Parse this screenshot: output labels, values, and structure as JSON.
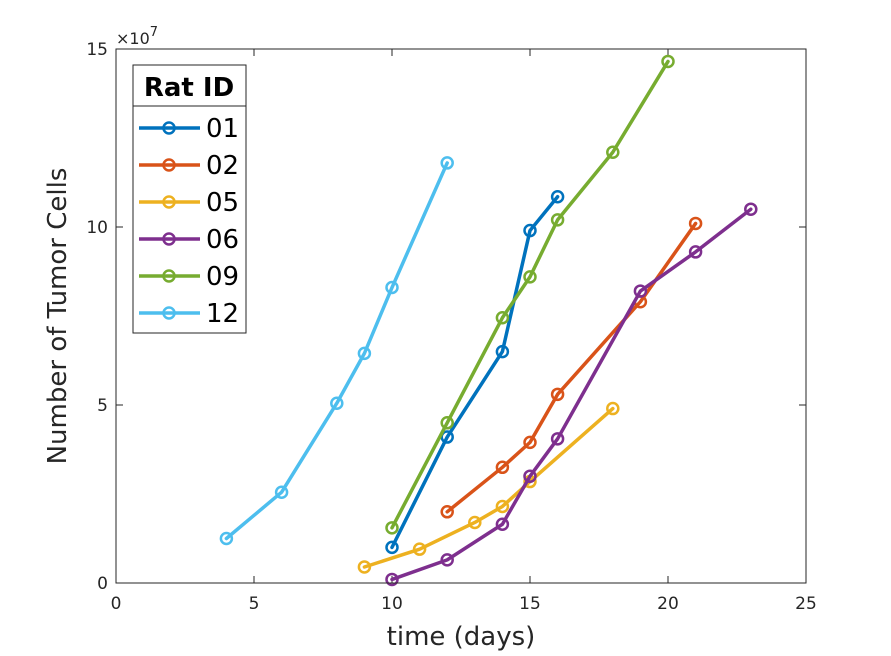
{
  "chart_data": {
    "type": "line",
    "xlabel": "time (days)",
    "ylabel": "Number of Tumor Cells",
    "xlim": [
      0,
      25
    ],
    "ylim": [
      0,
      150000000
    ],
    "xticks": [
      0,
      5,
      10,
      15,
      20,
      25
    ],
    "yticks": [
      0,
      50000000,
      100000000,
      150000000
    ],
    "ytick_labels": [
      "0",
      "5",
      "10",
      "15"
    ],
    "y_multiplier": "×10",
    "y_multiplier_exp": "7",
    "grid": false,
    "legend": {
      "title": "Rat ID",
      "placement": "top-left"
    },
    "series": [
      {
        "name": "01",
        "color": "#0072BD",
        "x": [
          10,
          12,
          14,
          15,
          16
        ],
        "y": [
          10000000,
          41000000,
          65000000,
          99000000,
          108500000
        ]
      },
      {
        "name": "02",
        "color": "#D95319",
        "x": [
          12,
          14,
          15,
          16,
          19,
          21
        ],
        "y": [
          20000000,
          32500000,
          39500000,
          53000000,
          79000000,
          101000000
        ]
      },
      {
        "name": "05",
        "color": "#EDB120",
        "x": [
          9,
          11,
          13,
          14,
          15,
          18
        ],
        "y": [
          4500000,
          9500000,
          17000000,
          21500000,
          28500000,
          49000000
        ]
      },
      {
        "name": "06",
        "color": "#7E2F8E",
        "x": [
          10,
          12,
          14,
          15,
          16,
          19,
          21,
          23
        ],
        "y": [
          1000000,
          6500000,
          16500000,
          30000000,
          40500000,
          82000000,
          93000000,
          105000000
        ]
      },
      {
        "name": "09",
        "color": "#77AC30",
        "x": [
          10,
          12,
          14,
          15,
          16,
          18,
          20
        ],
        "y": [
          15500000,
          45000000,
          74500000,
          86000000,
          102000000,
          121000000,
          146500000
        ]
      },
      {
        "name": "12",
        "color": "#4DBEEE",
        "x": [
          4,
          6,
          8,
          9,
          10,
          12
        ],
        "y": [
          12500000,
          25500000,
          50500000,
          64500000,
          83000000,
          118000000
        ]
      }
    ]
  }
}
